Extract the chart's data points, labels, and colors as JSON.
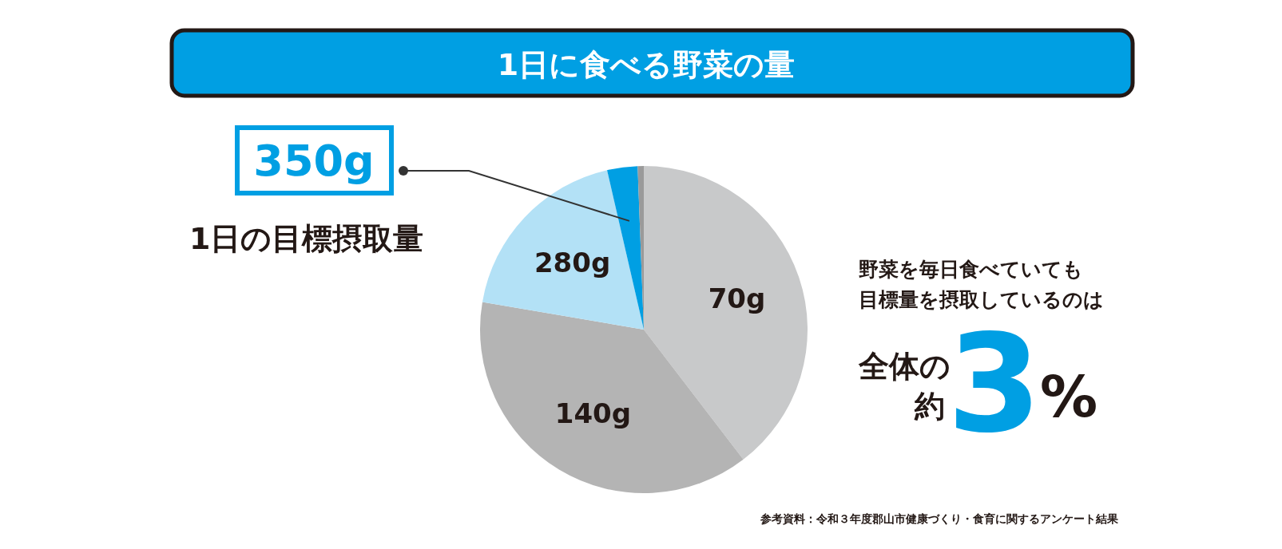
{
  "chart_data": {
    "type": "pie",
    "title": "1日に食べる野菜の量",
    "categories": [
      "70g",
      "140g",
      "280g",
      "350g",
      null
    ],
    "values": [
      39.6,
      38.1,
      18.7,
      3.0,
      0.6
    ],
    "colors": [
      "#c8c9ca",
      "#b4b4b4",
      "#b3e1f6",
      "#009fe3",
      "#9a9a9a"
    ],
    "annotations": [
      "1日の目標摂取量",
      "野菜を毎日食べていても",
      "目標量を摂取しているのは",
      "全体の",
      "約",
      "3",
      "%",
      "参考資料：令和３年度郡山市健康づくり・食育に関するアンケート結果"
    ]
  }
}
